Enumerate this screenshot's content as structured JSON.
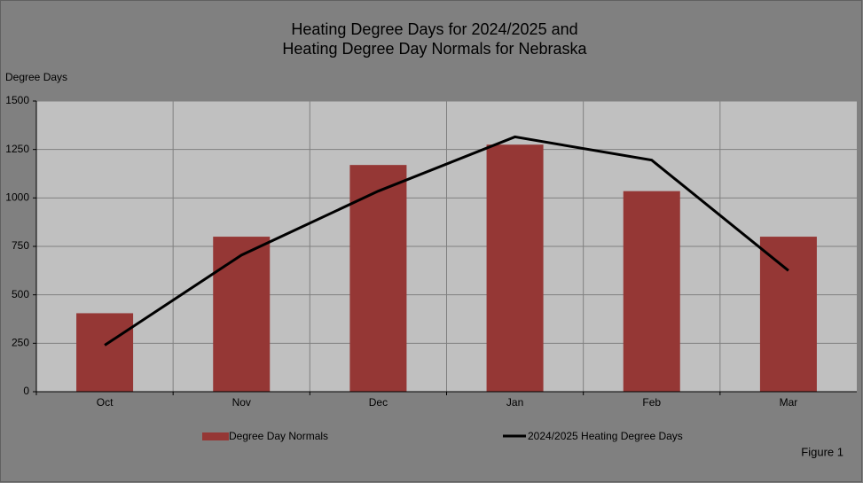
{
  "chart_data": {
    "type": "bar",
    "title": [
      "Heating Degree Days for 2024/2025  and",
      "Heating Degree Day Normals for Nebraska"
    ],
    "y_label": "Degree  Days",
    "note": "Figure 1",
    "categories": [
      "Oct",
      "Nov",
      "Dec",
      "Jan",
      "Feb",
      "Mar"
    ],
    "series": [
      {
        "name": "Degree Day Normals",
        "type": "bar",
        "color": "#953735",
        "values": [
          405,
          800,
          1170,
          1275,
          1035,
          800
        ]
      },
      {
        "name": "2024/2025 Heating Degree Days",
        "type": "line",
        "color": "#000000",
        "values": [
          240,
          705,
          1035,
          1315,
          1195,
          625
        ]
      }
    ],
    "ylim": [
      0,
      1500
    ],
    "yticks": [
      0,
      250,
      500,
      750,
      1000,
      1250,
      1500
    ],
    "grid": true
  }
}
